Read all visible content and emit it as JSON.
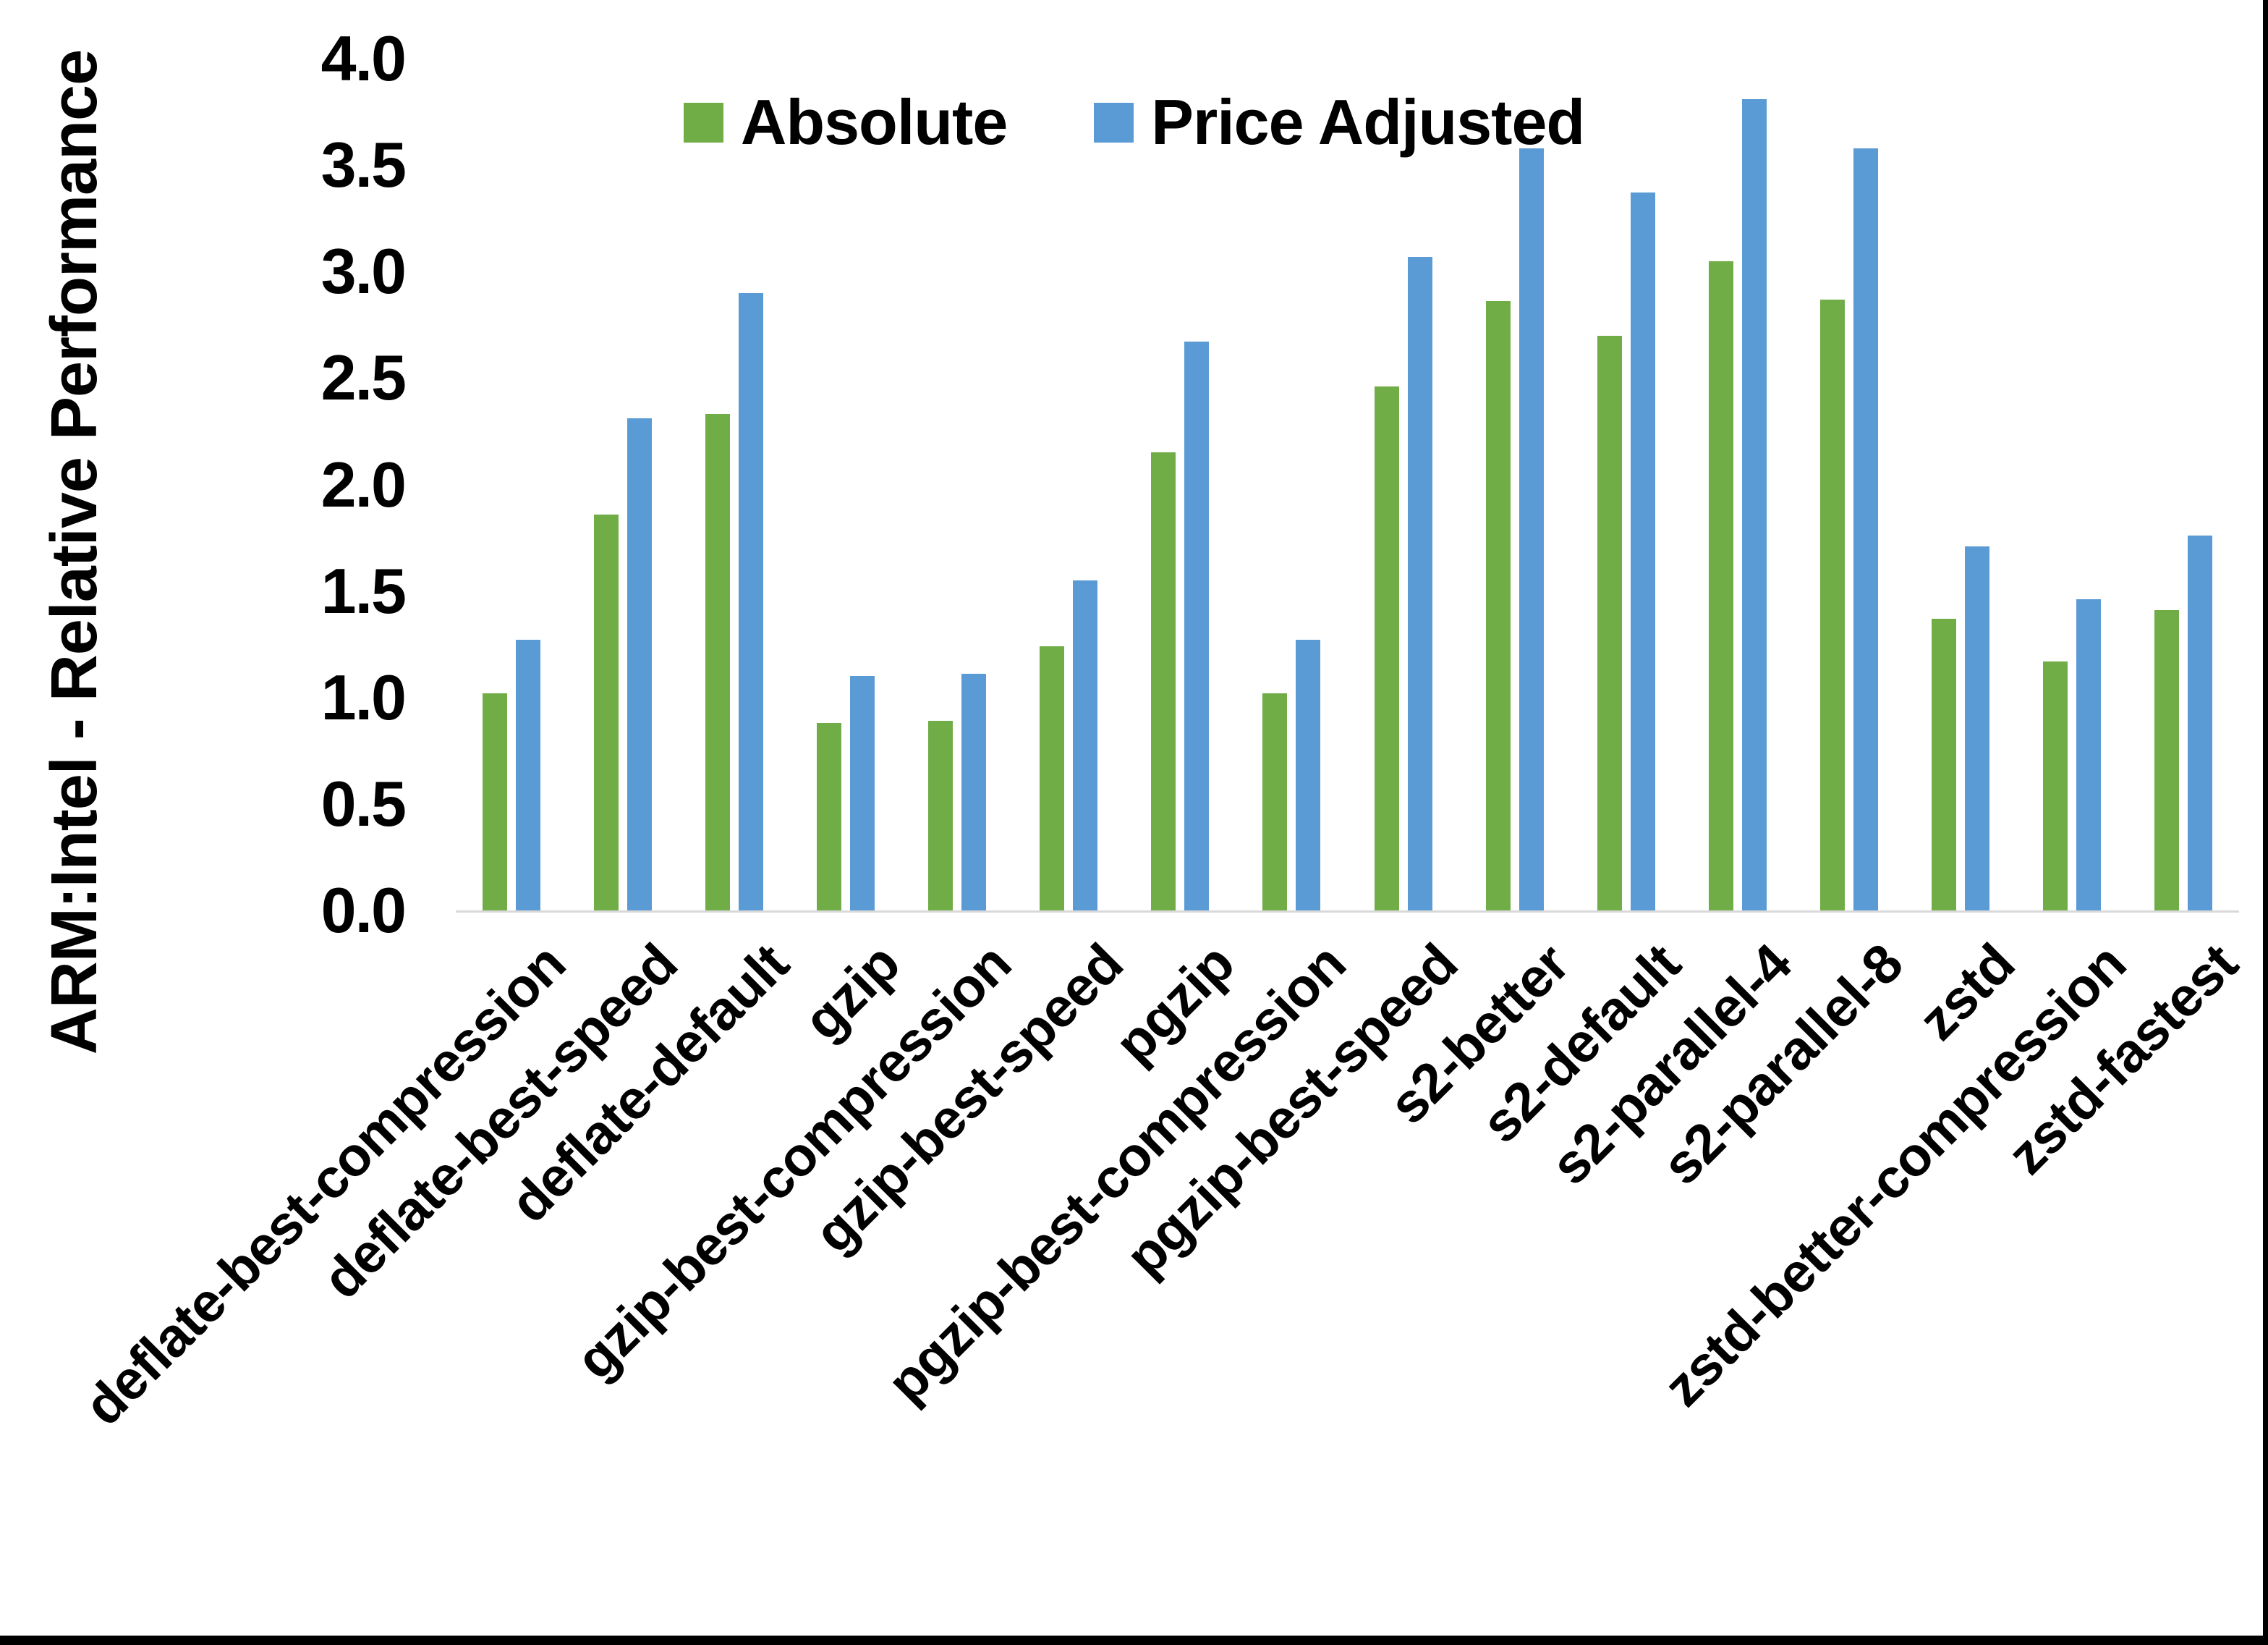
{
  "figure": {
    "background_color": "#FFFFFF",
    "frame_color": "#000000",
    "axis_line_color": "#D9D9D9",
    "text_color": "#000000"
  },
  "legend": {
    "position": "top-center",
    "items": [
      {
        "label": "Absolute",
        "color": "#70AD47"
      },
      {
        "label": "Price Adjusted",
        "color": "#5B9BD5"
      }
    ]
  },
  "chart_data": {
    "type": "bar",
    "title": "",
    "xlabel": "",
    "ylabel": "ARM:Intel - Relative Performance",
    "ylim": [
      0.0,
      4.0
    ],
    "ytick_step": 0.5,
    "yticks": [
      "4.0",
      "3.5",
      "3.0",
      "2.5",
      "2.0",
      "1.5",
      "1.0",
      "0.5",
      "0.0"
    ],
    "grid": false,
    "legend_position": "top-center",
    "bar_orientation": "vertical",
    "x_label_rotation_deg": 45,
    "categories": [
      "deflate-best-compression",
      "deflate-best-speed",
      "deflate-default",
      "gzip",
      "gzip-best-compression",
      "gzip-best-speed",
      "pgzip",
      "pgzip-best-compression",
      "pgzip-best-speed",
      "s2-better",
      "s2-default",
      "s2-parallel-4",
      "s2-parallel-8",
      "zstd",
      "zstd-better-compression",
      "zstd-fastest"
    ],
    "series": [
      {
        "name": "Absolute",
        "color": "#70AD47",
        "values": [
          1.02,
          1.86,
          2.33,
          0.88,
          0.89,
          1.24,
          2.15,
          1.02,
          2.46,
          2.86,
          2.7,
          3.05,
          2.87,
          1.37,
          1.17,
          1.41
        ]
      },
      {
        "name": "Price Adjusted",
        "color": "#5B9BD5",
        "values": [
          1.27,
          2.31,
          2.9,
          1.1,
          1.11,
          1.55,
          2.67,
          1.27,
          3.07,
          3.58,
          3.37,
          3.81,
          3.58,
          1.71,
          1.46,
          1.76
        ]
      }
    ]
  }
}
